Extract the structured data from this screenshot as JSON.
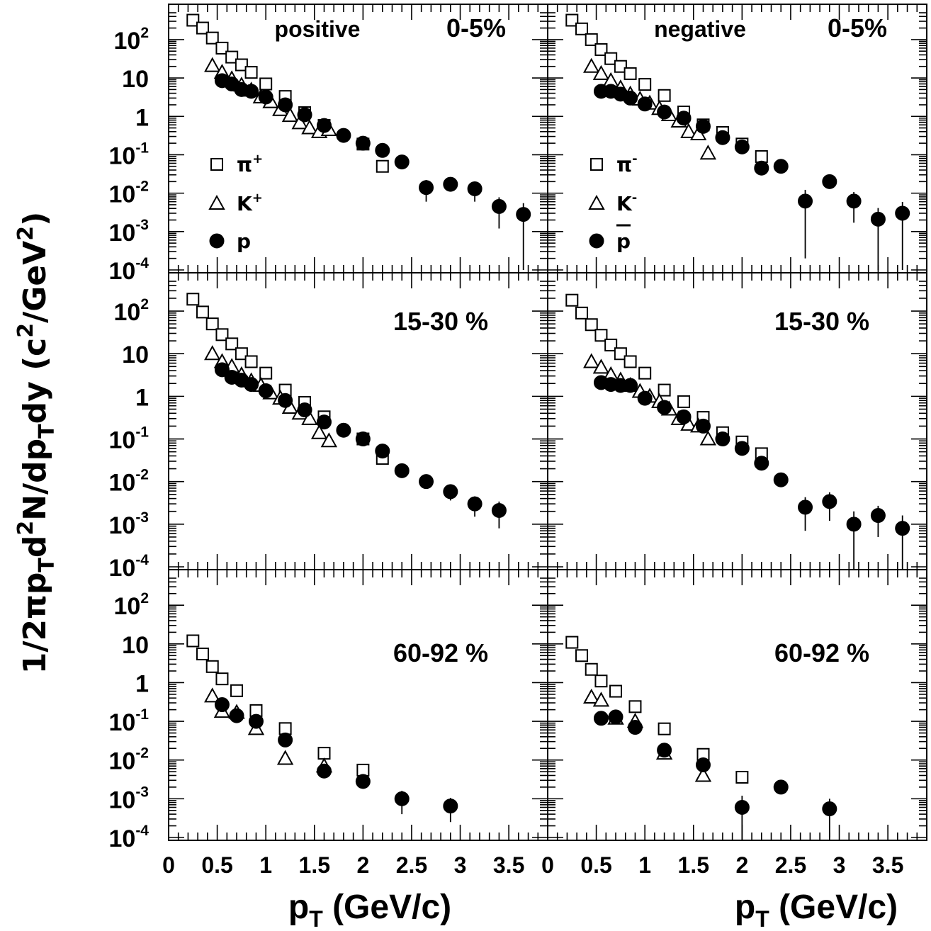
{
  "chart_data": {
    "type": "scatter",
    "layout": "3 rows x 2 columns, shared axes",
    "y_axis_title": "1/2πp_Td²N/dp_Tdy (c²/GeV²)",
    "x_axis_title": "p_T (GeV/c)",
    "yscale": "log",
    "ylim": [
      0.0001,
      500
    ],
    "xlim": [
      0,
      3.9
    ],
    "ytick_labels": [
      {
        "value": 100,
        "base": "10",
        "exp": "2"
      },
      {
        "value": 10,
        "base": "10",
        "exp": ""
      },
      {
        "value": 1,
        "base": "1",
        "exp": ""
      },
      {
        "value": 0.1,
        "base": "10",
        "exp": "-1"
      },
      {
        "value": 0.01,
        "base": "10",
        "exp": "-2"
      },
      {
        "value": 0.001,
        "base": "10",
        "exp": "-3"
      },
      {
        "value": 0.0001,
        "base": "10",
        "exp": "-4"
      }
    ],
    "xtick_labels": [
      "0",
      "0.5",
      "1",
      "1.5",
      "2",
      "2.5",
      "3",
      "3.5"
    ],
    "xtick_values": [
      0,
      0.5,
      1,
      1.5,
      2,
      2.5,
      3,
      3.5
    ],
    "charge_labels": [
      "positive",
      "negative"
    ],
    "centrality_labels": [
      "0-5%",
      "15-30 %",
      "60-92 %"
    ],
    "legends": [
      [
        {
          "marker": "open-square",
          "base": "π",
          "sup": "+",
          "overline": false
        },
        {
          "marker": "open-triangle",
          "base": "K",
          "sup": "+",
          "overline": false
        },
        {
          "marker": "filled-circle",
          "base": "p",
          "sup": "",
          "overline": false
        }
      ],
      [
        {
          "marker": "open-square",
          "base": "π",
          "sup": "-",
          "overline": false
        },
        {
          "marker": "open-triangle",
          "base": "K",
          "sup": "-",
          "overline": false
        },
        {
          "marker": "filled-circle",
          "base": "p",
          "sup": "",
          "overline": true
        }
      ]
    ],
    "panels": [
      {
        "row": 0,
        "col": 0,
        "centrality": "0-5%",
        "charge": "positive",
        "series": [
          {
            "particle": "pi+",
            "marker": "open-square",
            "x": [
              0.25,
              0.35,
              0.45,
              0.55,
              0.65,
              0.75,
              0.85,
              1.0,
              1.2,
              1.4,
              1.6,
              2.0,
              2.2
            ],
            "y": [
              320,
              200,
              110,
              60,
              35,
              22,
              14,
              7,
              3.3,
              1.25,
              0.58,
              0.19,
              0.05
            ],
            "err": []
          },
          {
            "particle": "K+",
            "marker": "open-triangle",
            "x": [
              0.45,
              0.55,
              0.65,
              0.75,
              0.85,
              0.95,
              1.05,
              1.15,
              1.25,
              1.35,
              1.45,
              1.55,
              1.65
            ],
            "y": [
              21,
              14,
              9.5,
              6.5,
              4.8,
              3.2,
              2.4,
              1.5,
              1.05,
              0.68,
              0.5,
              0.4,
              0.45
            ],
            "err": []
          },
          {
            "particle": "p",
            "marker": "filled-circle",
            "x": [
              0.55,
              0.65,
              0.75,
              0.85,
              1.0,
              1.2,
              1.4,
              1.6,
              1.8,
              2.0,
              2.2,
              2.4,
              2.65,
              2.9,
              3.15,
              3.4,
              3.65
            ],
            "y": [
              8.5,
              7,
              5,
              4.5,
              3.2,
              2.0,
              1.1,
              0.58,
              0.32,
              0.2,
              0.13,
              0.065,
              0.014,
              0.017,
              0.013,
              0.0045,
              0.0028
            ],
            "err": [
              0,
              0,
              0,
              0,
              0,
              0,
              0,
              0,
              0,
              0,
              0,
              0,
              0.008,
              0.006,
              0.007,
              0.0033,
              0.0027
            ]
          }
        ]
      },
      {
        "row": 0,
        "col": 1,
        "centrality": "0-5%",
        "charge": "negative",
        "series": [
          {
            "particle": "pi-",
            "marker": "open-square",
            "x": [
              0.25,
              0.35,
              0.45,
              0.55,
              0.65,
              0.75,
              0.85,
              1.0,
              1.2,
              1.4,
              1.6,
              1.8,
              2.0,
              2.2
            ],
            "y": [
              320,
              190,
              100,
              55,
              32,
              20,
              13,
              6.8,
              3.5,
              1.3,
              0.6,
              0.38,
              0.19,
              0.09
            ],
            "err": []
          },
          {
            "particle": "K-",
            "marker": "open-triangle",
            "x": [
              0.45,
              0.55,
              0.65,
              0.75,
              0.85,
              0.95,
              1.05,
              1.15,
              1.25,
              1.35,
              1.45,
              1.55,
              1.65
            ],
            "y": [
              20,
              13,
              8.5,
              5.5,
              3.8,
              2.8,
              2.2,
              1.6,
              1.1,
              0.75,
              0.4,
              0.35,
              0.11
            ],
            "err": []
          },
          {
            "particle": "pbar",
            "marker": "filled-circle",
            "x": [
              0.55,
              0.65,
              0.75,
              0.85,
              1.0,
              1.2,
              1.4,
              1.6,
              1.8,
              2.0,
              2.2,
              2.4,
              2.65,
              2.9,
              3.15,
              3.4,
              3.65
            ],
            "y": [
              4.5,
              4.5,
              3.8,
              3.0,
              2.1,
              1.3,
              0.9,
              0.55,
              0.28,
              0.16,
              0.045,
              0.05,
              0.0062,
              0.02,
              0.0062,
              0.0021,
              0.003
            ],
            "err": [
              0,
              0,
              0,
              0,
              0,
              0,
              0,
              0,
              0,
              0,
              0.015,
              0,
              0.006,
              0.007,
              0.0045,
              0.002,
              0.0029
            ]
          }
        ]
      },
      {
        "row": 1,
        "col": 0,
        "centrality": "15-30 %",
        "charge": "positive",
        "series": [
          {
            "particle": "pi+",
            "marker": "open-square",
            "x": [
              0.25,
              0.35,
              0.45,
              0.55,
              0.65,
              0.75,
              0.85,
              1.0,
              1.2,
              1.4,
              1.6,
              2.0,
              2.2
            ],
            "y": [
              190,
              95,
              50,
              28,
              17,
              10,
              6.5,
              3.5,
              1.4,
              0.72,
              0.33,
              0.1,
              0.035
            ],
            "err": []
          },
          {
            "particle": "K+",
            "marker": "open-triangle",
            "x": [
              0.45,
              0.55,
              0.65,
              0.75,
              0.85,
              0.95,
              1.05,
              1.15,
              1.25,
              1.35,
              1.45,
              1.55,
              1.65
            ],
            "y": [
              10,
              6.5,
              5.0,
              3.2,
              2.3,
              1.8,
              1.2,
              0.9,
              0.55,
              0.4,
              0.3,
              0.14,
              0.09
            ],
            "err": []
          },
          {
            "particle": "p",
            "marker": "filled-circle",
            "x": [
              0.55,
              0.65,
              0.75,
              0.85,
              1.0,
              1.2,
              1.4,
              1.6,
              1.8,
              2.0,
              2.2,
              2.4,
              2.65,
              2.9,
              3.15,
              3.4
            ],
            "y": [
              4.2,
              2.8,
              2.4,
              1.9,
              1.35,
              0.8,
              0.48,
              0.25,
              0.16,
              0.1,
              0.052,
              0.018,
              0.01,
              0.0058,
              0.003,
              0.0021
            ],
            "err": [
              0,
              0,
              0,
              0,
              0,
              0,
              0,
              0,
              0,
              0,
              0,
              0,
              0,
              0.0022,
              0.0015,
              0.0013
            ]
          }
        ]
      },
      {
        "row": 1,
        "col": 1,
        "centrality": "15-30 %",
        "charge": "negative",
        "series": [
          {
            "particle": "pi-",
            "marker": "open-square",
            "x": [
              0.25,
              0.35,
              0.45,
              0.55,
              0.65,
              0.75,
              0.85,
              1.0,
              1.2,
              1.4,
              1.6,
              1.8,
              2.0,
              2.2
            ],
            "y": [
              180,
              90,
              48,
              27,
              16,
              10,
              6.5,
              3.5,
              1.4,
              0.75,
              0.32,
              0.14,
              0.085,
              0.045
            ],
            "err": []
          },
          {
            "particle": "K-",
            "marker": "open-triangle",
            "x": [
              0.45,
              0.55,
              0.65,
              0.75,
              0.85,
              0.95,
              1.05,
              1.15,
              1.25,
              1.35,
              1.45,
              1.55,
              1.65
            ],
            "y": [
              6.5,
              4.8,
              3.2,
              2.4,
              1.8,
              1.3,
              1.0,
              0.75,
              0.5,
              0.3,
              0.22,
              0.2,
              0.1
            ],
            "err": []
          },
          {
            "particle": "pbar",
            "marker": "filled-circle",
            "x": [
              0.55,
              0.65,
              0.75,
              0.85,
              1.0,
              1.2,
              1.4,
              1.6,
              1.8,
              2.0,
              2.2,
              2.4,
              2.65,
              2.9,
              3.15,
              3.4,
              3.65
            ],
            "y": [
              2.1,
              1.9,
              1.8,
              1.8,
              0.9,
              0.55,
              0.33,
              0.2,
              0.1,
              0.06,
              0.027,
              0.011,
              0.0025,
              0.0034,
              0.001,
              0.0016,
              0.0008
            ],
            "err": [
              0,
              0,
              0,
              0,
              0,
              0,
              0,
              0,
              0,
              0,
              0,
              0.003,
              0.0018,
              0.0022,
              0.001,
              0.0011,
              0.0008
            ]
          }
        ]
      },
      {
        "row": 2,
        "col": 0,
        "centrality": "60-92 %",
        "charge": "positive",
        "series": [
          {
            "particle": "pi+",
            "marker": "open-square",
            "x": [
              0.25,
              0.35,
              0.45,
              0.55,
              0.7,
              0.9,
              1.2,
              1.6,
              2.0
            ],
            "y": [
              12,
              5.5,
              2.6,
              1.25,
              0.62,
              0.19,
              0.065,
              0.015,
              0.0055
            ],
            "err": []
          },
          {
            "particle": "K+",
            "marker": "open-triangle",
            "x": [
              0.45,
              0.55,
              0.7,
              0.9,
              1.2,
              1.6
            ],
            "y": [
              0.45,
              0.18,
              0.17,
              0.065,
              0.011,
              0.007
            ],
            "err": []
          },
          {
            "particle": "p",
            "marker": "filled-circle",
            "x": [
              0.55,
              0.7,
              0.9,
              1.2,
              1.6,
              2.0,
              2.4,
              2.9
            ],
            "y": [
              0.27,
              0.14,
              0.1,
              0.033,
              0.0052,
              0.0028,
              0.001,
              0.00065
            ],
            "err": [
              0,
              0,
              0,
              0,
              0,
              0.001,
              0.0006,
              0.0004
            ]
          }
        ]
      },
      {
        "row": 2,
        "col": 1,
        "centrality": "60-92 %",
        "charge": "negative",
        "series": [
          {
            "particle": "pi-",
            "marker": "open-square",
            "x": [
              0.25,
              0.35,
              0.45,
              0.55,
              0.7,
              0.9,
              1.2,
              1.6,
              2.0
            ],
            "y": [
              11,
              5,
              2.2,
              1.1,
              0.6,
              0.24,
              0.064,
              0.014,
              0.0036
            ],
            "err": []
          },
          {
            "particle": "K-",
            "marker": "open-triangle",
            "x": [
              0.45,
              0.55,
              0.7,
              0.9,
              1.2,
              1.6
            ],
            "y": [
              0.42,
              0.35,
              0.12,
              0.1,
              0.015,
              0.004
            ],
            "err": []
          },
          {
            "particle": "pbar",
            "marker": "filled-circle",
            "x": [
              0.55,
              0.7,
              0.9,
              1.2,
              1.6,
              2.0,
              2.4,
              2.9
            ],
            "y": [
              0.12,
              0.13,
              0.07,
              0.018,
              0.0075,
              0.0006,
              0.002,
              0.00055
            ],
            "err": [
              0,
              0,
              0,
              0,
              0,
              0.0006,
              0,
              0.00045
            ]
          }
        ]
      }
    ]
  }
}
